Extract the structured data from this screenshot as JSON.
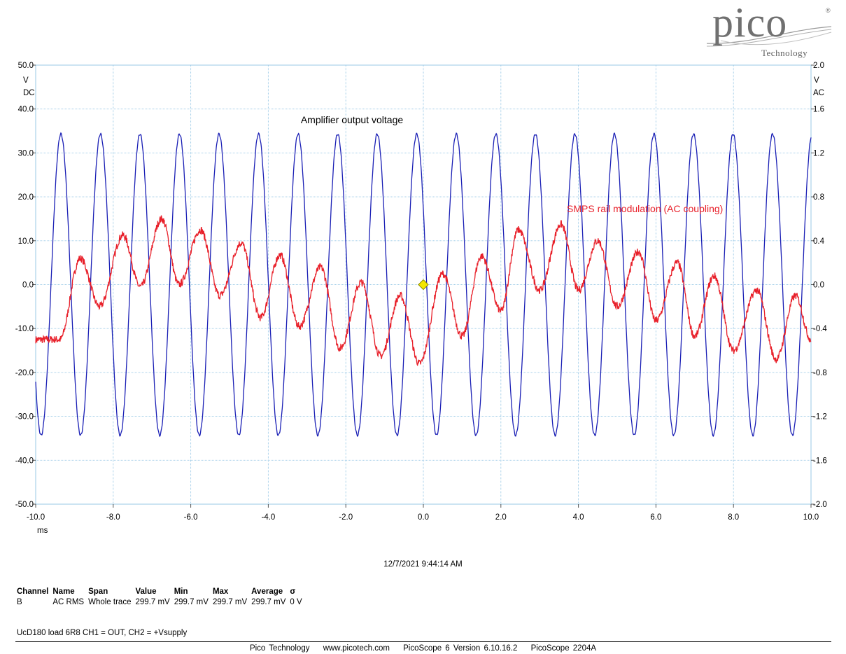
{
  "logo": {
    "word": "pico",
    "sub": "Technology",
    "reg": "®"
  },
  "chart_data": {
    "type": "line",
    "title": "Amplifier output voltage",
    "annotations": [
      {
        "text": "Amplifier output voltage",
        "color": "#000000"
      },
      {
        "text": "SMPS rail modulation (AC coupling)",
        "color": "#e8202a"
      }
    ],
    "x_axis": {
      "ticks": [
        "-10.0",
        "-8.0",
        "-6.0",
        "-4.0",
        "-2.0",
        "0.0",
        "2.0",
        "4.0",
        "6.0",
        "8.0",
        "10.0"
      ],
      "unit": "ms",
      "range": [
        -10,
        10
      ]
    },
    "y_left": {
      "ticks": [
        "50.0",
        "40.0",
        "30.0",
        "20.0",
        "10.0",
        "0.0",
        "-10.0",
        "-20.0",
        "-30.0",
        "-40.0",
        "-50.0"
      ],
      "unit": "V",
      "coupling": "DC",
      "range": [
        -50,
        50
      ]
    },
    "y_right": {
      "ticks": [
        "2.0",
        "1.6",
        "1.2",
        "0.8",
        "0.4",
        "0.0",
        "-0.4",
        "-0.8",
        "-1.2",
        "-1.6",
        "-2.0"
      ],
      "unit": "V",
      "coupling": "AC",
      "range": [
        -2,
        2
      ]
    },
    "grid": true,
    "trigger_marker": {
      "x": 0,
      "y": 0
    },
    "series": [
      {
        "channel": "A",
        "color": "#1a1fb5",
        "axis": "left",
        "waveform": "sine",
        "amplitude": 34.3,
        "period_ms": 1.02,
        "x_at_first_peak_ms": -9.35,
        "x_range": [
          -10,
          10
        ]
      },
      {
        "channel": "B",
        "color": "#e8202a",
        "axis": "right",
        "waveform": "sine with beat envelope",
        "amplitude": 0.4,
        "period_ms": 1.03,
        "x_range": [
          -10,
          10
        ],
        "key_points": [
          [
            -9.38,
            -0.5
          ],
          [
            -8.85,
            0.24
          ],
          [
            -8.35,
            -0.2
          ],
          [
            -7.75,
            0.45
          ],
          [
            -7.3,
            -0.02
          ],
          [
            -6.75,
            0.6
          ],
          [
            -6.3,
            0.0
          ],
          [
            -5.75,
            0.5
          ],
          [
            -5.25,
            -0.1
          ],
          [
            -4.7,
            0.38
          ],
          [
            -4.2,
            -0.3
          ],
          [
            -3.7,
            0.27
          ],
          [
            -3.2,
            -0.38
          ],
          [
            -2.65,
            0.16
          ],
          [
            -2.15,
            -0.58
          ],
          [
            -1.6,
            0.02
          ],
          [
            -1.1,
            -0.65
          ],
          [
            -0.6,
            -0.1
          ],
          [
            -0.1,
            -0.72
          ],
          [
            0.5,
            0.1
          ],
          [
            1.0,
            -0.47
          ],
          [
            1.5,
            0.26
          ],
          [
            2.0,
            -0.24
          ],
          [
            2.45,
            0.5
          ],
          [
            3.0,
            -0.05
          ],
          [
            3.55,
            0.55
          ],
          [
            4.0,
            -0.05
          ],
          [
            4.5,
            0.4
          ],
          [
            5.0,
            -0.2
          ],
          [
            5.55,
            0.3
          ],
          [
            6.0,
            -0.33
          ],
          [
            6.55,
            0.2
          ],
          [
            7.0,
            -0.47
          ],
          [
            7.5,
            0.08
          ],
          [
            8.0,
            -0.6
          ],
          [
            8.6,
            -0.05
          ],
          [
            9.1,
            -0.68
          ],
          [
            9.6,
            -0.1
          ],
          [
            10.0,
            -0.5
          ]
        ]
      }
    ]
  },
  "timestamp": "12/7/2021 9:44:14 AM",
  "measurements": {
    "headers": [
      "Channel",
      "Name",
      "Span",
      "Value",
      "Min",
      "Max",
      "Average",
      "σ"
    ],
    "row": [
      "B",
      "AC RMS",
      "Whole trace",
      "299.7 mV",
      "299.7 mV",
      "299.7 mV",
      "299.7 mV",
      "0 V"
    ]
  },
  "caption": "UcD180 load 6R8 CH1 = OUT, CH2 = +Vsupply",
  "footer": [
    "Pico Technology",
    "www.picotech.com",
    "PicoScope 6 Version 6.10.16.2",
    "PicoScope 2204A"
  ]
}
